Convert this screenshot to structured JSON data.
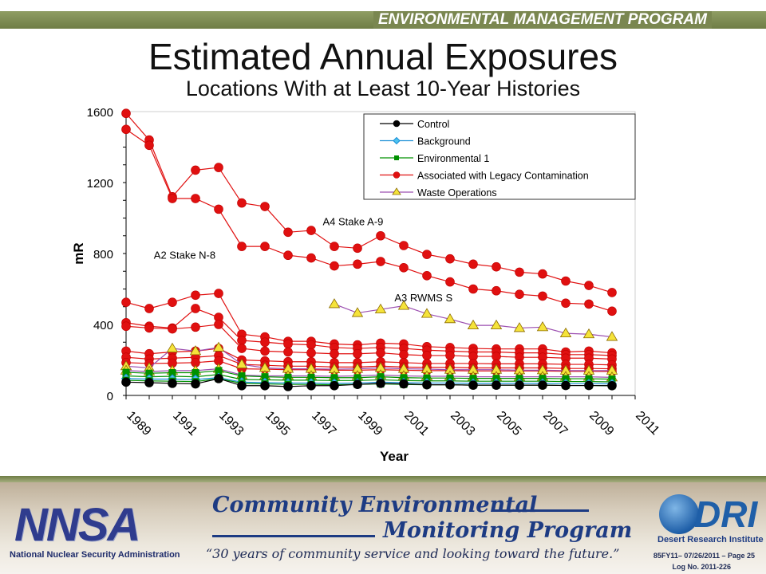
{
  "header": {
    "program": "ENVIRONMENTAL MANAGEMENT PROGRAM"
  },
  "slide": {
    "title": "Estimated Annual Exposures",
    "subtitle": "Locations With at Least 10-Year Histories"
  },
  "chart_data": {
    "type": "line",
    "xlabel": "Year",
    "ylabel": "mR",
    "xlim": [
      1989,
      2011
    ],
    "ylim": [
      0,
      1600
    ],
    "yticks": [
      0,
      400,
      800,
      1200,
      1600
    ],
    "xticks": [
      1989,
      1991,
      1993,
      1995,
      1997,
      1999,
      2001,
      2003,
      2005,
      2007,
      2009,
      2011
    ],
    "grid": false,
    "legend_position": "top-right",
    "legend": [
      {
        "name": "Control",
        "color": "#000000",
        "marker": "circle"
      },
      {
        "name": "Background",
        "color": "#1a8fd6",
        "marker": "diamond"
      },
      {
        "name": "Environmental 1",
        "color": "#009000",
        "marker": "square"
      },
      {
        "name": "Associated with Legacy Contamination",
        "color": "#e01010",
        "marker": "circle"
      },
      {
        "name": "Waste Operations",
        "color": "#9c4fb0",
        "marker": "triangle"
      }
    ],
    "annotations": [
      {
        "text": "A4 Stake A-9",
        "x": 1997.5,
        "y": 960
      },
      {
        "text": "A2 Stake N-8",
        "x": 1990.2,
        "y": 770
      },
      {
        "text": "A3 RWMS S",
        "x": 2000.6,
        "y": 530
      }
    ],
    "series": [
      {
        "name": "",
        "category": "Associated with Legacy Contamination",
        "x": [
          1989,
          1990,
          1991,
          1992,
          1993,
          1994,
          1995,
          1996,
          1997,
          1998,
          1999,
          2000,
          2001,
          2002,
          2003,
          2004,
          2005,
          2006,
          2007,
          2008,
          2009,
          2010
        ],
        "values": [
          1590,
          1440,
          1120,
          1270,
          1285,
          1085,
          1065,
          920,
          930,
          840,
          830,
          900,
          845,
          795,
          770,
          740,
          725,
          695,
          685,
          645,
          620,
          580
        ]
      },
      {
        "name": "",
        "category": "Associated with Legacy Contamination",
        "x": [
          1989,
          1990,
          1991,
          1992,
          1993,
          1994,
          1995,
          1996,
          1997,
          1998,
          1999,
          2000,
          2001,
          2002,
          2003,
          2004,
          2005,
          2006,
          2007,
          2008,
          2009,
          2010
        ],
        "values": [
          1500,
          1410,
          1110,
          1110,
          1050,
          840,
          840,
          790,
          775,
          730,
          740,
          755,
          720,
          675,
          640,
          600,
          590,
          570,
          560,
          520,
          515,
          475
        ]
      },
      {
        "name": "",
        "category": "Associated with Legacy Contamination",
        "x": [
          1989,
          1990,
          1991,
          1992,
          1993,
          1994,
          1995,
          1996,
          1997,
          1998,
          1999,
          2000,
          2001,
          2002,
          2003,
          2004,
          2005,
          2006,
          2007,
          2008,
          2009,
          2010
        ],
        "values": [
          525,
          490,
          525,
          565,
          575,
          345,
          330,
          305,
          305,
          290,
          285,
          295,
          290,
          275,
          270,
          265,
          262,
          262,
          262,
          245,
          250,
          240
        ]
      },
      {
        "name": "",
        "category": "Associated with Legacy Contamination",
        "x": [
          1989,
          1990,
          1991,
          1992,
          1993,
          1994,
          1995,
          1996,
          1997,
          1998,
          1999,
          2000,
          2001,
          2002,
          2003,
          2004,
          2005,
          2006,
          2007,
          2008,
          2009,
          2010
        ],
        "values": [
          410,
          390,
          380,
          490,
          440,
          310,
          300,
          290,
          285,
          270,
          265,
          270,
          265,
          255,
          250,
          245,
          245,
          240,
          240,
          230,
          230,
          225
        ]
      },
      {
        "name": "",
        "category": "Associated with Legacy Contamination",
        "x": [
          1989,
          1990,
          1991,
          1992,
          1993,
          1994,
          1995,
          1996,
          1997,
          1998,
          1999,
          2000,
          2001,
          2002,
          2003,
          2004,
          2005,
          2006,
          2007,
          2008,
          2009,
          2010
        ],
        "values": [
          390,
          380,
          375,
          385,
          400,
          265,
          250,
          245,
          240,
          235,
          235,
          240,
          230,
          225,
          225,
          220,
          220,
          215,
          215,
          210,
          210,
          205
        ]
      },
      {
        "name": "",
        "category": "Associated with Legacy Contamination",
        "x": [
          1989,
          1990,
          1991,
          1992,
          1993,
          1994,
          1995,
          1996,
          1997,
          1998,
          1999,
          2000,
          2001,
          2002,
          2003,
          2004,
          2005,
          2006,
          2007,
          2008,
          2009,
          2010
        ],
        "values": [
          250,
          235,
          245,
          250,
          265,
          200,
          195,
          190,
          190,
          185,
          185,
          190,
          185,
          180,
          180,
          180,
          178,
          178,
          178,
          175,
          175,
          172
        ]
      },
      {
        "name": "",
        "category": "Associated with Legacy Contamination",
        "x": [
          1989,
          1990,
          1991,
          1992,
          1993,
          1994,
          1995,
          1996,
          1997,
          1998,
          1999,
          2000,
          2001,
          2002,
          2003,
          2004,
          2005,
          2006,
          2007,
          2008,
          2009,
          2010
        ],
        "values": [
          215,
          205,
          210,
          215,
          225,
          175,
          170,
          165,
          165,
          160,
          160,
          165,
          160,
          158,
          158,
          155,
          155,
          155,
          155,
          152,
          152,
          150
        ]
      },
      {
        "name": "",
        "category": "Associated with Legacy Contamination",
        "x": [
          1989,
          1990,
          1991,
          1992,
          1993,
          1994,
          1995,
          1996,
          1997,
          1998,
          1999,
          2000,
          2001,
          2002,
          2003,
          2004,
          2005,
          2006,
          2007,
          2008,
          2009,
          2010
        ],
        "values": [
          185,
          180,
          182,
          185,
          195,
          150,
          148,
          145,
          145,
          142,
          142,
          145,
          142,
          140,
          140,
          138,
          138,
          138,
          138,
          136,
          136,
          135
        ]
      },
      {
        "name": "",
        "category": "Waste Operations",
        "x": [
          1998,
          1999,
          2000,
          2001,
          2002,
          2003,
          2004,
          2005,
          2006,
          2007,
          2008,
          2009,
          2010
        ],
        "values": [
          515,
          465,
          485,
          505,
          460,
          430,
          395,
          395,
          380,
          385,
          350,
          345,
          330
        ]
      },
      {
        "name": "",
        "category": "Waste Operations",
        "x": [
          1989,
          1990,
          1991,
          1992,
          1993,
          1994,
          1995,
          1996,
          1997,
          1998,
          1999,
          2000,
          2001,
          2002,
          2003,
          2004,
          2005,
          2006,
          2007,
          2008,
          2009,
          2010
        ],
        "values": [
          165,
          155,
          265,
          250,
          270,
          175,
          155,
          150,
          150,
          148,
          150,
          155,
          150,
          148,
          145,
          145,
          145,
          142,
          142,
          140,
          140,
          140
        ]
      },
      {
        "name": "",
        "category": "Waste Operations",
        "x": [
          1989,
          1990,
          1991,
          1992,
          1993,
          1994,
          1995,
          1996,
          1997,
          1998,
          1999,
          2000,
          2001,
          2002,
          2003,
          2004,
          2005,
          2006,
          2007,
          2008,
          2009,
          2010
        ],
        "values": [
          140,
          135,
          140,
          140,
          150,
          115,
          110,
          110,
          110,
          108,
          110,
          115,
          110,
          108,
          108,
          105,
          105,
          105,
          105,
          105,
          105,
          102
        ]
      },
      {
        "name": "",
        "category": "Environmental 1",
        "x": [
          1989,
          1990,
          1991,
          1992,
          1993,
          1994,
          1995,
          1996,
          1997,
          1998,
          1999,
          2000,
          2001,
          2002,
          2003,
          2004,
          2005,
          2006,
          2007,
          2008,
          2009,
          2010
        ],
        "values": [
          130,
          125,
          128,
          128,
          140,
          110,
          105,
          102,
          102,
          100,
          100,
          105,
          100,
          98,
          98,
          96,
          96,
          96,
          96,
          94,
          94,
          92
        ]
      },
      {
        "name": "",
        "category": "Environmental 1",
        "x": [
          1989,
          1990,
          1991,
          1992,
          1993,
          1994,
          1995,
          1996,
          1997,
          1998,
          1999,
          2000,
          2001,
          2002,
          2003,
          2004,
          2005,
          2006,
          2007,
          2008,
          2009,
          2010
        ],
        "values": [
          110,
          105,
          108,
          105,
          118,
          90,
          88,
          86,
          86,
          84,
          84,
          88,
          84,
          82,
          82,
          80,
          80,
          80,
          80,
          78,
          78,
          76
        ]
      },
      {
        "name": "",
        "category": "Background",
        "x": [
          1989,
          1990,
          1991,
          1992,
          1993,
          1994,
          1995,
          1996,
          1997,
          1998,
          1999,
          2000,
          2001,
          2002,
          2003,
          2004,
          2005,
          2006,
          2007,
          2008,
          2009,
          2010
        ],
        "values": [
          95,
          92,
          92,
          90,
          100,
          75,
          72,
          70,
          70,
          68,
          70,
          75,
          72,
          70,
          70,
          68,
          68,
          68,
          68,
          66,
          66,
          65
        ]
      },
      {
        "name": "",
        "category": "Environmental 1",
        "x": [
          1989,
          1990,
          1991,
          1992,
          1993,
          1994,
          1995,
          1996,
          1997,
          1998,
          1999,
          2000,
          2001,
          2002,
          2003,
          2004,
          2005,
          2006,
          2007,
          2008,
          2009,
          2010
        ],
        "values": [
          85,
          82,
          80,
          78,
          95,
          68,
          65,
          62,
          62,
          60,
          62,
          65,
          62,
          60,
          60,
          58,
          58,
          58,
          58,
          56,
          56,
          55
        ]
      },
      {
        "name": "",
        "category": "Control",
        "x": [
          1989,
          1990,
          1991,
          1992,
          1993,
          1994,
          1995,
          1996,
          1997,
          1998,
          1999,
          2000,
          2001,
          2002,
          2003,
          2004,
          2005,
          2006,
          2007,
          2008,
          2009,
          2010
        ],
        "values": [
          75,
          72,
          68,
          65,
          95,
          55,
          55,
          50,
          55,
          55,
          62,
          68,
          65,
          60,
          60,
          58,
          58,
          58,
          58,
          56,
          56,
          55
        ]
      }
    ]
  },
  "footer": {
    "nnsa_logo": "NNSA",
    "nnsa_name": "National Nuclear Security Administration",
    "program_line1": "Community Environmental",
    "program_line2": "Monitoring Program",
    "tagline": "“30 years of community service and looking toward the future.”",
    "dri_logo": "DRI",
    "dri_name": "Desert Research Institute",
    "page_ref": "85FY11– 07/26/2011 – Page 25",
    "log_ref": "Log No. 2011-226"
  }
}
